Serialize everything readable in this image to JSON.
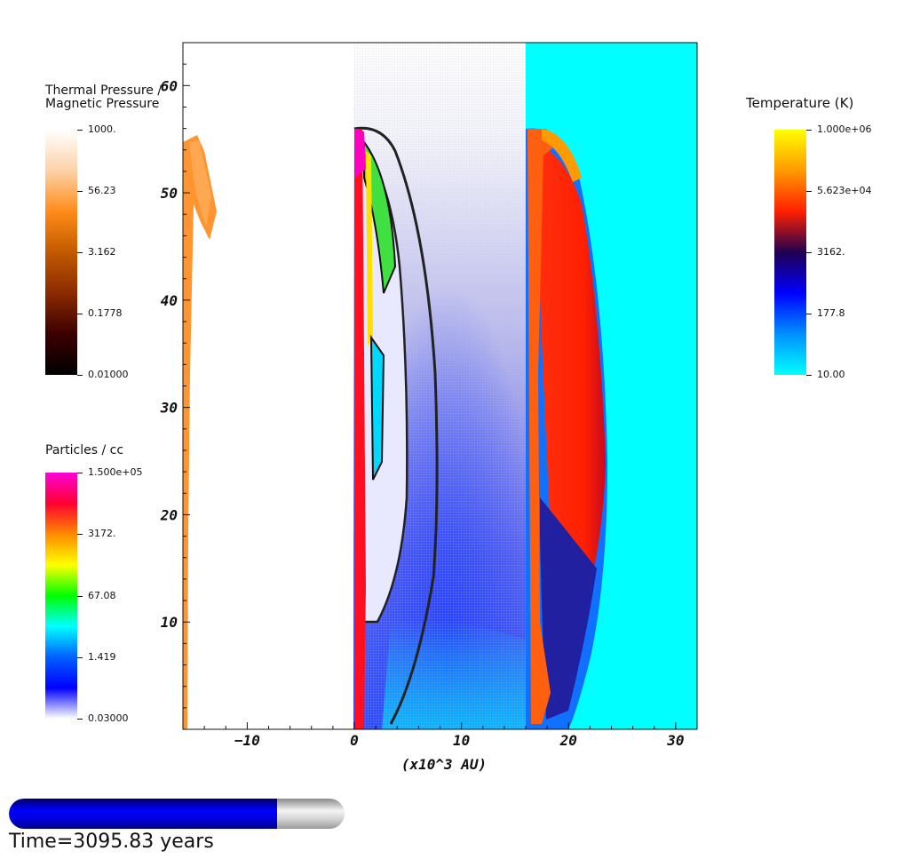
{
  "legends": {
    "pressure": {
      "title_line1": "Thermal Pressure /",
      "title_line2": "Magnetic Pressure",
      "ticks": [
        "1000.",
        "56.23",
        "3.162",
        "0.1778",
        "0.01000"
      ],
      "colors": [
        "#ffffff",
        "#fcd2a8",
        "#ff8c1a",
        "#c25a00",
        "#8a2a00",
        "#3c0000",
        "#000000"
      ]
    },
    "particles": {
      "title": "Particles / cc",
      "ticks": [
        "1.500e+05",
        "3172.",
        "67.08",
        "1.419",
        "0.03000"
      ],
      "colors": [
        "#ff00d8",
        "#ff0030",
        "#ff8a00",
        "#ffff00",
        "#00ff00",
        "#00ffff",
        "#0060ff",
        "#0000ff",
        "#ffffff"
      ]
    },
    "temperature": {
      "title": "Temperature (K)",
      "ticks": [
        "1.000e+06",
        "5.623e+04",
        "3162.",
        "177.8",
        "10.00"
      ],
      "colors": [
        "#ffff00",
        "#ff9a00",
        "#ff2000",
        "#200050",
        "#0000ff",
        "#0090ff",
        "#00ffff"
      ]
    }
  },
  "chart_data": {
    "type": "heatmap",
    "title": "",
    "xlabel": "(x10^3 AU)",
    "ylabel": "",
    "xlim": [
      -16,
      32
    ],
    "ylim": [
      0,
      64
    ],
    "x_ticks": [
      -10,
      0,
      10,
      20,
      30
    ],
    "x_tick_labels": [
      "−10",
      "0",
      "10",
      "20",
      "30"
    ],
    "y_ticks": [
      10,
      20,
      30,
      40,
      50,
      60
    ],
    "panels": [
      {
        "name": "Thermal Pressure / Magnetic Pressure",
        "x_range": [
          -16,
          0
        ]
      },
      {
        "name": "Particles / cc",
        "x_range": [
          0,
          16
        ]
      },
      {
        "name": "Temperature (K)",
        "x_range": [
          16,
          32
        ]
      }
    ],
    "grid": false
  },
  "progress": {
    "fraction": 0.8
  },
  "time_text": "Time=3095.83 years"
}
